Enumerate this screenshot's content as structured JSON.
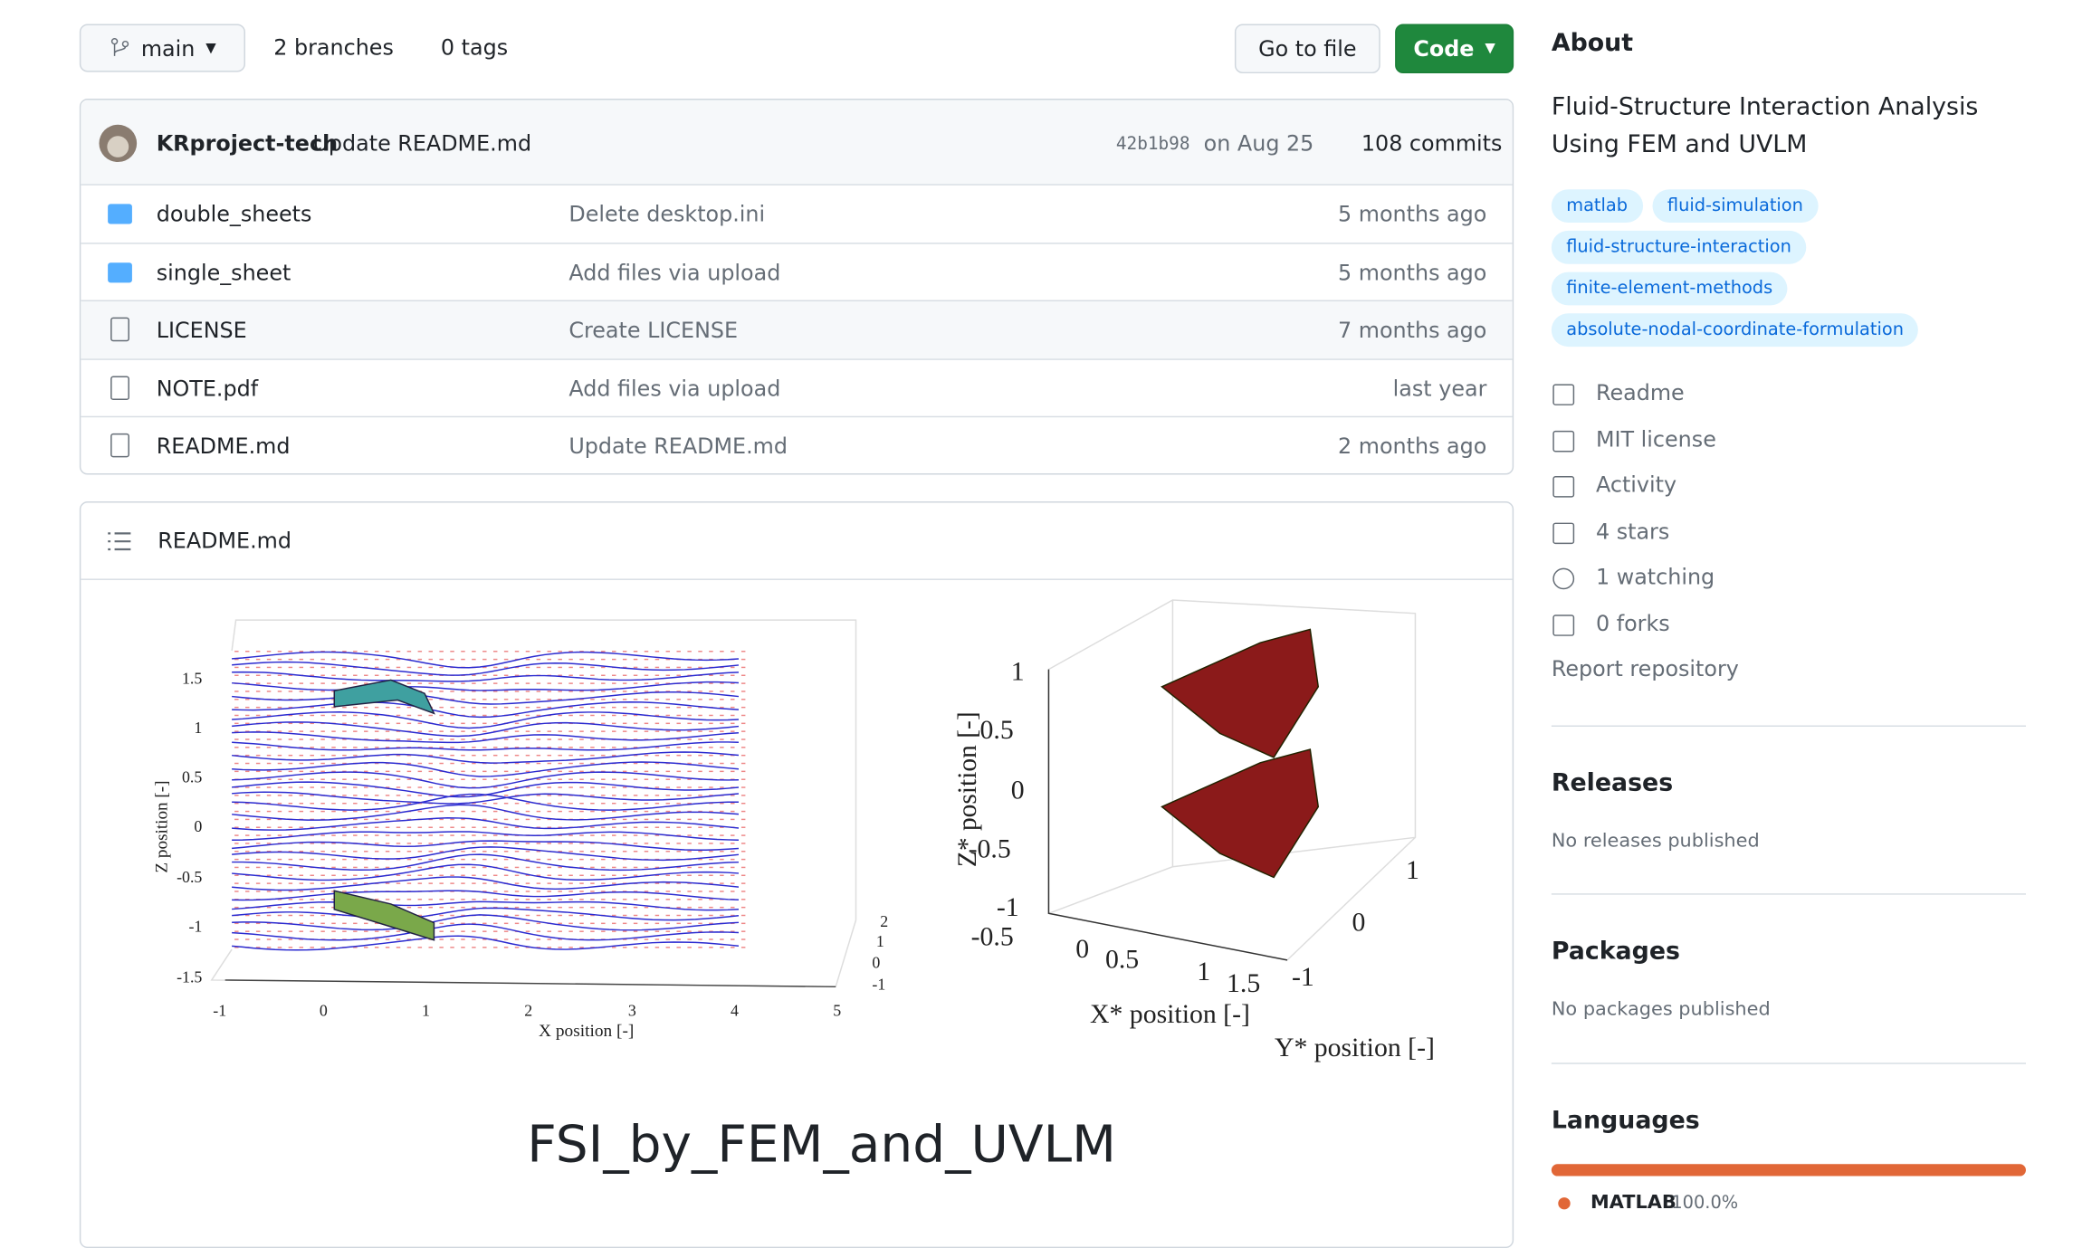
{
  "repo_bar": {
    "branch": "main",
    "branches": "2 branches",
    "tags": "0 tags",
    "go_to_file": "Go to file",
    "code": "Code"
  },
  "commit": {
    "author": "KRproject-tech",
    "message": "Update README.md",
    "sha": "42b1b98",
    "date": "on Aug 25",
    "commits": "108 commits"
  },
  "files": [
    {
      "name": "double_sheets",
      "kind": "folder",
      "message": "Delete desktop.ini",
      "age": "5 months ago"
    },
    {
      "name": "single_sheet",
      "kind": "folder",
      "message": "Add files via upload",
      "age": "5 months ago"
    },
    {
      "name": "LICENSE",
      "kind": "file",
      "message": "Create LICENSE",
      "age": "7 months ago"
    },
    {
      "name": "NOTE.pdf",
      "kind": "file",
      "message": "Add files via upload",
      "age": "last year"
    },
    {
      "name": "README.md",
      "kind": "file",
      "message": "Update README.md",
      "age": "2 months ago"
    }
  ],
  "readme": {
    "filename": "README.md",
    "figure_left": {
      "x_label": "X position [-]",
      "z_label": "Z position [-]",
      "z_ticks": [
        "1.5",
        "1",
        "0.5",
        "0",
        "-0.5",
        "-1",
        "-1.5"
      ],
      "x_ticks": [
        "-1",
        "0",
        "1",
        "2",
        "3",
        "4",
        "5"
      ],
      "y_ticks": [
        "2",
        "1",
        "0",
        "-1"
      ]
    },
    "figure_right": {
      "x_label": "X* position [-]",
      "y_label": "Y* position [-]",
      "z_label": "Z* position [-]",
      "z_ticks": [
        "1",
        "0.5",
        "0",
        "-0.5",
        "-1"
      ],
      "x_ticks": [
        "-0.5",
        "0",
        "0.5",
        "1",
        "1.5"
      ],
      "y_ticks": [
        "1",
        "0",
        "-1"
      ]
    },
    "heading": "FSI_by_FEM_and_UVLM"
  },
  "about": {
    "title": "About",
    "description": "Fluid-Structure Interaction Analysis Using FEM and UVLM",
    "topics": [
      "matlab",
      "fluid-simulation",
      "fluid-structure-interaction",
      "finite-element-methods",
      "absolute-nodal-coordinate-formulation"
    ],
    "links": [
      "Readme",
      "MIT license",
      "Activity",
      "4 stars",
      "1 watching",
      "0 forks"
    ],
    "report": "Report repository"
  },
  "releases": {
    "title": "Releases",
    "note": "No releases published"
  },
  "packages": {
    "title": "Packages",
    "note": "No packages published"
  },
  "languages": {
    "title": "Languages",
    "items": [
      {
        "name": "MATLAB",
        "percent": 100.0,
        "label": "100.0%",
        "color": "#e16737"
      }
    ]
  }
}
